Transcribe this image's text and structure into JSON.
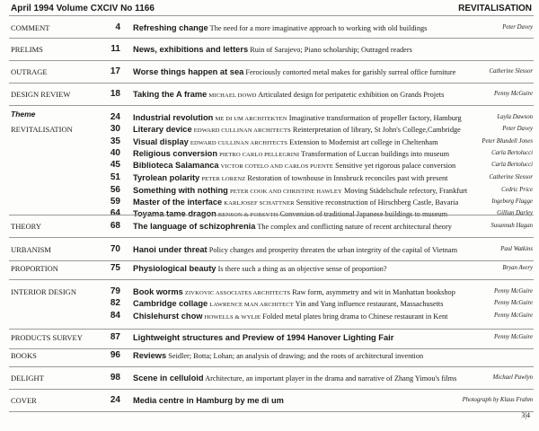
{
  "header": {
    "issue": "April 1994 Volume CXCIV No 1166",
    "theme": "REVITALISATION"
  },
  "groups": [
    {
      "section": "COMMENT",
      "entries": [
        {
          "page": "4",
          "title": "Refreshing change",
          "architect": "",
          "desc": "The need for a more imaginative approach to working with old buildings",
          "author": "Peter Davey"
        }
      ]
    },
    {
      "section": "PRELIMS",
      "entries": [
        {
          "page": "11",
          "title": "News, exhibitions and letters",
          "architect": "",
          "desc": "Ruin of Sarajevo; Piano scholarship; Outraged readers",
          "author": ""
        }
      ]
    },
    {
      "section": "OUTRAGE",
      "entries": [
        {
          "page": "17",
          "title": "Worse things happen at sea",
          "architect": "",
          "desc": "Ferociously contorted metal makes for garishly surreal office furniture",
          "author": "Catherine Slessor"
        }
      ]
    },
    {
      "section": "DESIGN REVIEW",
      "entries": [
        {
          "page": "18",
          "title": "Taking the A frame",
          "architect": "Michael Dowd",
          "desc": "Articulated design for peripatetic exhibition on Grands Projets",
          "author": "Penny McGuire"
        }
      ]
    },
    {
      "section": "REVITALISATION",
      "theme_label": "Theme",
      "entries": [
        {
          "page": "24",
          "title": "Industrial revolution",
          "architect": "me di um Architekten",
          "desc": "Imaginative transformation of propeller factory, Hamburg",
          "author": "Layla Dawson"
        },
        {
          "page": "30",
          "title": "Literary device",
          "architect": "Edward Cullinan Architects",
          "desc": "Reinterpretation of library, St John's College,Cambridge",
          "author": "Peter Davey"
        },
        {
          "page": "35",
          "title": "Visual display",
          "architect": "Edward Cullinan Architects",
          "desc": "Extension to Modernist art college in Cheltenham",
          "author": "Peter Blundell Jones"
        },
        {
          "page": "40",
          "title": "Religious conversion",
          "architect": "Pietro Carlo Pellegrini",
          "desc": "Transformation of Luccan buildings into museum",
          "author": "Carla Bertolucci"
        },
        {
          "page": "45",
          "title": "Biblioteca Salamanca",
          "architect": "Victor Cotelo and Carlos Puente",
          "desc": "Sensitive yet rigorous palace conversion",
          "author": "Carla Bertolucci"
        },
        {
          "page": "51",
          "title": "Tyrolean polarity",
          "architect": "Peter Lorenz",
          "desc": "Restoration of townhouse in Innsbruck reconciles past with present",
          "author": "Catherine Slessor"
        },
        {
          "page": "56",
          "title": "Something with nothing",
          "architect": "Peter Cook and Christine Hawley",
          "desc": "Moving Städelschule refectory, Frankfurt",
          "author": "Cedric Price"
        },
        {
          "page": "59",
          "title": "Master of the interface",
          "architect": "Karljosef Schattner",
          "desc": "Sensitive reconstruction of Hirschberg Castle, Bavaria",
          "author": "Ingeborg Flagge"
        },
        {
          "page": "64",
          "title": "Toyama tame dragon",
          "architect": "Benson & Forsyth",
          "desc": "Conversion of traditional Japanese buildings to museum",
          "author": "Gillian Darley"
        }
      ]
    },
    {
      "section": "THEORY",
      "entries": [
        {
          "page": "68",
          "title": "The language of schizophrenia",
          "architect": "",
          "desc": "The complex and conflicting nature of recent architectural theory",
          "author": "Susannah Hagan"
        }
      ]
    },
    {
      "section": "URBANISM",
      "entries": [
        {
          "page": "70",
          "title": "Hanoi under threat",
          "architect": "",
          "desc": "Policy changes and prosperity threaten the urban integrity of the capital of Vietnam",
          "author": "Paul Watkins"
        }
      ]
    },
    {
      "section": "PROPORTION",
      "entries": [
        {
          "page": "75",
          "title": "Physiological beauty",
          "architect": "",
          "desc": "Is there such a thing as an objective sense of proportion?",
          "author": "Bryan Avery"
        }
      ]
    },
    {
      "section": "INTERIOR DESIGN",
      "entries": [
        {
          "page": "79",
          "title": "Book worms",
          "architect": "Zivkovic Associates Architects",
          "desc": "Raw form, asymmetry and wit in Manhattan bookshop",
          "author": "Penny McGuire"
        },
        {
          "page": "82",
          "title": "Cambridge collage",
          "architect": "Lawrence Man Architect",
          "desc": "Yin and Yang influence restaurant, Massachusetts",
          "author": "Penny McGuire"
        },
        {
          "page": "84",
          "title": "Chislehurst chow",
          "architect": "Howells & Wylie",
          "desc": "Folded metal plates bring drama to Chinese restaurant in Kent",
          "author": "Penny McGuire"
        }
      ]
    },
    {
      "section": "PRODUCTS SURVEY",
      "entries": [
        {
          "page": "87",
          "title": "Lightweight structures and Preview of 1994 Hanover Lighting Fair",
          "architect": "",
          "desc": "",
          "author": "Penny McGuire"
        }
      ]
    },
    {
      "section": "BOOKS",
      "entries": [
        {
          "page": "96",
          "title": "Reviews",
          "architect": "",
          "desc": "Seidler; Botta; Lohan; an analysis of drawing; and the roots of architectural invention",
          "author": ""
        }
      ]
    },
    {
      "section": "DELIGHT",
      "entries": [
        {
          "page": "98",
          "title": "Scene in celluloid",
          "architect": "",
          "desc": "Architecture, an important player in the drama and narrative of Zhang Yimou's films",
          "author": "Michael Pawlyn"
        }
      ]
    },
    {
      "section": "COVER",
      "entries": [
        {
          "page": "24",
          "title": "Media centre in Hamburg by me di um",
          "architect": "",
          "desc": "",
          "author": "Photograph by Klaus Frahm"
        }
      ]
    }
  ],
  "folio": "3|4"
}
